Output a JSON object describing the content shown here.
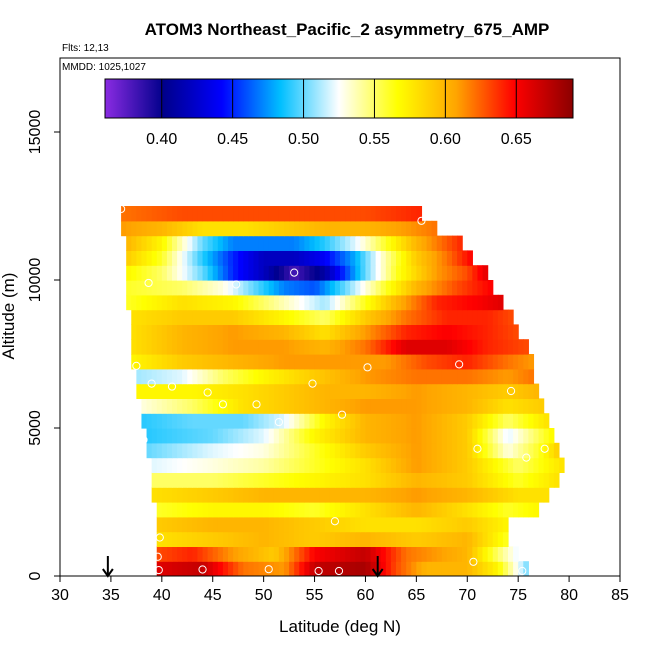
{
  "chart_data": {
    "type": "heatmap",
    "title": "ATOM3 Northeast_Pacific_2 asymmetry_675_AMP",
    "flights_label": "Flts: 12,13",
    "mmdd_label": "MMDD: 1025,1027",
    "xlabel": "Latitude (deg N)",
    "ylabel": "Altitude (m)",
    "xlim": [
      30,
      85
    ],
    "ylim": [
      0,
      17500
    ],
    "x_ticks": [
      "30",
      "35",
      "40",
      "45",
      "50",
      "55",
      "60",
      "65",
      "70",
      "75",
      "80",
      "85"
    ],
    "y_ticks": [
      "0",
      "5000",
      "10000",
      "15000"
    ],
    "colorbar": {
      "range": [
        0.36,
        0.69
      ],
      "ticks": [
        "0.40",
        "0.45",
        "0.50",
        "0.55",
        "0.60",
        "0.65"
      ],
      "colors": [
        "#8a2be2",
        "#00008b",
        "#0000ff",
        "#00bfff",
        "#ffffff",
        "#ffff00",
        "#ffa500",
        "#ff0000",
        "#8b0000"
      ]
    },
    "arrows": [
      34.7,
      61.2
    ],
    "altitude_bins": [
      {
        "alt": 250,
        "lat_min": 39.5,
        "lat_max": 76.0,
        "anchors": [
          [
            39.5,
            0.66
          ],
          [
            44,
            0.67
          ],
          [
            48,
            0.62
          ],
          [
            52,
            0.61
          ],
          [
            55,
            0.67
          ],
          [
            60,
            0.68
          ],
          [
            63,
            0.63
          ],
          [
            66,
            0.6
          ],
          [
            70,
            0.6
          ],
          [
            73,
            0.57
          ],
          [
            76,
            0.5
          ]
        ]
      },
      {
        "alt": 750,
        "lat_min": 39.5,
        "lat_max": 75.0,
        "anchors": [
          [
            39.5,
            0.63
          ],
          [
            43,
            0.64
          ],
          [
            47,
            0.61
          ],
          [
            51,
            0.59
          ],
          [
            55,
            0.65
          ],
          [
            60,
            0.67
          ],
          [
            64,
            0.62
          ],
          [
            70,
            0.6
          ],
          [
            73,
            0.55
          ],
          [
            75,
            0.52
          ]
        ]
      },
      {
        "alt": 1250,
        "lat_min": 39.5,
        "lat_max": 74.0,
        "anchors": [
          [
            39.5,
            0.58
          ],
          [
            45,
            0.59
          ],
          [
            50,
            0.6
          ],
          [
            55,
            0.59
          ],
          [
            60,
            0.6
          ],
          [
            65,
            0.59
          ],
          [
            70,
            0.6
          ],
          [
            74,
            0.56
          ]
        ]
      },
      {
        "alt": 1750,
        "lat_min": 39.5,
        "lat_max": 74.0,
        "anchors": [
          [
            39.5,
            0.59
          ],
          [
            45,
            0.6
          ],
          [
            50,
            0.6
          ],
          [
            55,
            0.59
          ],
          [
            60,
            0.58
          ],
          [
            65,
            0.58
          ],
          [
            70,
            0.59
          ],
          [
            74,
            0.57
          ]
        ]
      },
      {
        "alt": 2250,
        "lat_min": 39.5,
        "lat_max": 77.0,
        "anchors": [
          [
            39.5,
            0.56
          ],
          [
            45,
            0.57
          ],
          [
            50,
            0.57
          ],
          [
            55,
            0.56
          ],
          [
            60,
            0.58
          ],
          [
            65,
            0.6
          ],
          [
            70,
            0.58
          ],
          [
            74,
            0.56
          ],
          [
            77,
            0.57
          ]
        ]
      },
      {
        "alt": 2750,
        "lat_min": 39.0,
        "lat_max": 78.0,
        "anchors": [
          [
            39,
            0.58
          ],
          [
            45,
            0.59
          ],
          [
            50,
            0.6
          ],
          [
            55,
            0.6
          ],
          [
            60,
            0.6
          ],
          [
            65,
            0.61
          ],
          [
            70,
            0.6
          ],
          [
            75,
            0.58
          ],
          [
            78,
            0.58
          ]
        ]
      },
      {
        "alt": 3250,
        "lat_min": 39.0,
        "lat_max": 79.0,
        "anchors": [
          [
            39,
            0.55
          ],
          [
            45,
            0.55
          ],
          [
            50,
            0.56
          ],
          [
            55,
            0.57
          ],
          [
            60,
            0.58
          ],
          [
            65,
            0.6
          ],
          [
            70,
            0.59
          ],
          [
            75,
            0.56
          ],
          [
            79,
            0.58
          ]
        ]
      },
      {
        "alt": 3750,
        "lat_min": 39.0,
        "lat_max": 79.5,
        "anchors": [
          [
            39,
            0.52
          ],
          [
            45,
            0.53
          ],
          [
            50,
            0.54
          ],
          [
            55,
            0.56
          ],
          [
            60,
            0.58
          ],
          [
            65,
            0.61
          ],
          [
            70,
            0.59
          ],
          [
            75,
            0.55
          ],
          [
            79.5,
            0.58
          ]
        ]
      },
      {
        "alt": 4250,
        "lat_min": 38.5,
        "lat_max": 79.0,
        "anchors": [
          [
            38.5,
            0.5
          ],
          [
            45,
            0.52
          ],
          [
            50,
            0.53
          ],
          [
            55,
            0.56
          ],
          [
            60,
            0.59
          ],
          [
            65,
            0.61
          ],
          [
            70,
            0.59
          ],
          [
            74,
            0.53
          ],
          [
            77,
            0.56
          ],
          [
            79,
            0.59
          ]
        ]
      },
      {
        "alt": 4750,
        "lat_min": 38.5,
        "lat_max": 78.5,
        "anchors": [
          [
            38.5,
            0.49
          ],
          [
            45,
            0.5
          ],
          [
            50,
            0.52
          ],
          [
            55,
            0.57
          ],
          [
            60,
            0.6
          ],
          [
            65,
            0.61
          ],
          [
            70,
            0.59
          ],
          [
            74,
            0.52
          ],
          [
            78.5,
            0.57
          ]
        ]
      },
      {
        "alt": 5250,
        "lat_min": 38.0,
        "lat_max": 78.0,
        "anchors": [
          [
            38,
            0.49
          ],
          [
            43,
            0.5
          ],
          [
            48,
            0.5
          ],
          [
            52,
            0.52
          ],
          [
            56,
            0.57
          ],
          [
            60,
            0.6
          ],
          [
            65,
            0.61
          ],
          [
            70,
            0.59
          ],
          [
            74,
            0.55
          ],
          [
            78,
            0.58
          ]
        ]
      },
      {
        "alt": 5750,
        "lat_min": 38.0,
        "lat_max": 77.5,
        "anchors": [
          [
            38,
            0.53
          ],
          [
            43,
            0.55
          ],
          [
            48,
            0.58
          ],
          [
            52,
            0.59
          ],
          [
            56,
            0.6
          ],
          [
            60,
            0.61
          ],
          [
            65,
            0.61
          ],
          [
            70,
            0.6
          ],
          [
            74,
            0.58
          ],
          [
            77.5,
            0.59
          ]
        ]
      },
      {
        "alt": 6250,
        "lat_min": 37.5,
        "lat_max": 77.0,
        "anchors": [
          [
            37.5,
            0.57
          ],
          [
            43,
            0.57
          ],
          [
            48,
            0.58
          ],
          [
            52,
            0.59
          ],
          [
            56,
            0.6
          ],
          [
            60,
            0.6
          ],
          [
            65,
            0.61
          ],
          [
            70,
            0.6
          ],
          [
            74,
            0.59
          ],
          [
            77,
            0.6
          ]
        ]
      },
      {
        "alt": 6750,
        "lat_min": 37.5,
        "lat_max": 76.5,
        "anchors": [
          [
            37.5,
            0.51
          ],
          [
            42,
            0.52
          ],
          [
            46,
            0.55
          ],
          [
            50,
            0.57
          ],
          [
            55,
            0.59
          ],
          [
            60,
            0.61
          ],
          [
            65,
            0.62
          ],
          [
            70,
            0.62
          ],
          [
            74,
            0.61
          ],
          [
            76.5,
            0.62
          ]
        ]
      },
      {
        "alt": 7250,
        "lat_min": 37.0,
        "lat_max": 76.5,
        "anchors": [
          [
            37,
            0.57
          ],
          [
            42,
            0.59
          ],
          [
            47,
            0.6
          ],
          [
            52,
            0.61
          ],
          [
            57,
            0.61
          ],
          [
            62,
            0.61
          ],
          [
            66,
            0.63
          ],
          [
            70,
            0.64
          ],
          [
            74,
            0.62
          ],
          [
            76.5,
            0.61
          ]
        ]
      },
      {
        "alt": 7750,
        "lat_min": 37.0,
        "lat_max": 76.0,
        "anchors": [
          [
            37,
            0.58
          ],
          [
            42,
            0.6
          ],
          [
            47,
            0.61
          ],
          [
            52,
            0.61
          ],
          [
            56,
            0.6
          ],
          [
            60,
            0.62
          ],
          [
            64,
            0.66
          ],
          [
            68,
            0.66
          ],
          [
            72,
            0.64
          ],
          [
            76,
            0.63
          ]
        ]
      },
      {
        "alt": 8250,
        "lat_min": 37.0,
        "lat_max": 75.0,
        "anchors": [
          [
            37,
            0.58
          ],
          [
            42,
            0.6
          ],
          [
            47,
            0.61
          ],
          [
            52,
            0.6
          ],
          [
            56,
            0.58
          ],
          [
            60,
            0.61
          ],
          [
            64,
            0.64
          ],
          [
            68,
            0.65
          ],
          [
            72,
            0.64
          ],
          [
            75,
            0.63
          ]
        ]
      },
      {
        "alt": 8750,
        "lat_min": 37.0,
        "lat_max": 74.5,
        "anchors": [
          [
            37,
            0.58
          ],
          [
            42,
            0.59
          ],
          [
            47,
            0.59
          ],
          [
            52,
            0.57
          ],
          [
            56,
            0.55
          ],
          [
            60,
            0.59
          ],
          [
            64,
            0.62
          ],
          [
            68,
            0.64
          ],
          [
            72,
            0.64
          ],
          [
            74.5,
            0.63
          ]
        ]
      },
      {
        "alt": 9250,
        "lat_min": 36.5,
        "lat_max": 73.5,
        "anchors": [
          [
            36.5,
            0.56
          ],
          [
            42,
            0.58
          ],
          [
            47,
            0.57
          ],
          [
            50,
            0.55
          ],
          [
            53,
            0.53
          ],
          [
            56,
            0.51
          ],
          [
            59,
            0.55
          ],
          [
            63,
            0.6
          ],
          [
            67,
            0.64
          ],
          [
            71,
            0.65
          ],
          [
            73.5,
            0.66
          ]
        ]
      },
      {
        "alt": 9750,
        "lat_min": 36.5,
        "lat_max": 72.5,
        "anchors": [
          [
            36.5,
            0.56
          ],
          [
            42,
            0.55
          ],
          [
            46,
            0.53
          ],
          [
            49,
            0.5
          ],
          [
            52,
            0.47
          ],
          [
            55,
            0.46
          ],
          [
            58,
            0.5
          ],
          [
            62,
            0.56
          ],
          [
            65,
            0.6
          ],
          [
            69,
            0.63
          ],
          [
            72.5,
            0.65
          ]
        ]
      },
      {
        "alt": 10250,
        "lat_min": 36.5,
        "lat_max": 72.0,
        "anchors": [
          [
            36.5,
            0.57
          ],
          [
            40,
            0.55
          ],
          [
            44,
            0.5
          ],
          [
            47,
            0.45
          ],
          [
            50,
            0.42
          ],
          [
            53,
            0.38
          ],
          [
            56,
            0.41
          ],
          [
            60,
            0.5
          ],
          [
            63,
            0.56
          ],
          [
            67,
            0.61
          ],
          [
            70,
            0.63
          ],
          [
            72,
            0.66
          ]
        ]
      },
      {
        "alt": 10750,
        "lat_min": 36.5,
        "lat_max": 70.5,
        "anchors": [
          [
            36.5,
            0.59
          ],
          [
            40,
            0.56
          ],
          [
            44,
            0.49
          ],
          [
            47,
            0.45
          ],
          [
            50,
            0.42
          ],
          [
            53,
            0.42
          ],
          [
            56,
            0.44
          ],
          [
            59,
            0.48
          ],
          [
            62,
            0.54
          ],
          [
            65,
            0.59
          ],
          [
            68,
            0.62
          ],
          [
            70.5,
            0.65
          ]
        ]
      },
      {
        "alt": 11250,
        "lat_min": 36.5,
        "lat_max": 69.5,
        "anchors": [
          [
            36.5,
            0.6
          ],
          [
            40,
            0.57
          ],
          [
            44,
            0.5
          ],
          [
            47,
            0.47
          ],
          [
            50,
            0.47
          ],
          [
            53,
            0.47
          ],
          [
            56,
            0.49
          ],
          [
            59,
            0.52
          ],
          [
            62,
            0.56
          ],
          [
            65,
            0.6
          ],
          [
            69.5,
            0.64
          ]
        ]
      },
      {
        "alt": 11750,
        "lat_min": 36.0,
        "lat_max": 67.0,
        "anchors": [
          [
            36,
            0.61
          ],
          [
            40,
            0.6
          ],
          [
            44,
            0.58
          ],
          [
            48,
            0.58
          ],
          [
            52,
            0.59
          ],
          [
            56,
            0.6
          ],
          [
            60,
            0.6
          ],
          [
            64,
            0.61
          ],
          [
            67,
            0.62
          ]
        ]
      },
      {
        "alt": 12250,
        "lat_min": 36.0,
        "lat_max": 65.5,
        "anchors": [
          [
            36,
            0.62
          ],
          [
            42,
            0.63
          ],
          [
            48,
            0.63
          ],
          [
            54,
            0.63
          ],
          [
            60,
            0.63
          ],
          [
            65.5,
            0.64
          ]
        ]
      }
    ],
    "sample_points": [
      [
        36.0,
        12400
      ],
      [
        65.5,
        12000
      ],
      [
        38.7,
        9900
      ],
      [
        47.3,
        9850
      ],
      [
        53.0,
        10250
      ],
      [
        72.5,
        10300
      ],
      [
        37.5,
        7100
      ],
      [
        60.2,
        7050
      ],
      [
        69.2,
        7150
      ],
      [
        77.0,
        7400
      ],
      [
        39.0,
        6500
      ],
      [
        41.0,
        6400
      ],
      [
        44.5,
        6200
      ],
      [
        54.8,
        6500
      ],
      [
        74.3,
        6250
      ],
      [
        46.0,
        5800
      ],
      [
        49.3,
        5800
      ],
      [
        57.7,
        5450
      ],
      [
        51.5,
        5200
      ],
      [
        38.2,
        4600
      ],
      [
        71.0,
        4300
      ],
      [
        75.8,
        4000
      ],
      [
        77.6,
        4300
      ],
      [
        57.0,
        1850
      ],
      [
        39.8,
        1300
      ],
      [
        39.6,
        650
      ],
      [
        39.7,
        200
      ],
      [
        44.0,
        220
      ],
      [
        50.5,
        230
      ],
      [
        55.4,
        170
      ],
      [
        57.4,
        170
      ],
      [
        70.6,
        480
      ],
      [
        75.4,
        170
      ]
    ]
  }
}
